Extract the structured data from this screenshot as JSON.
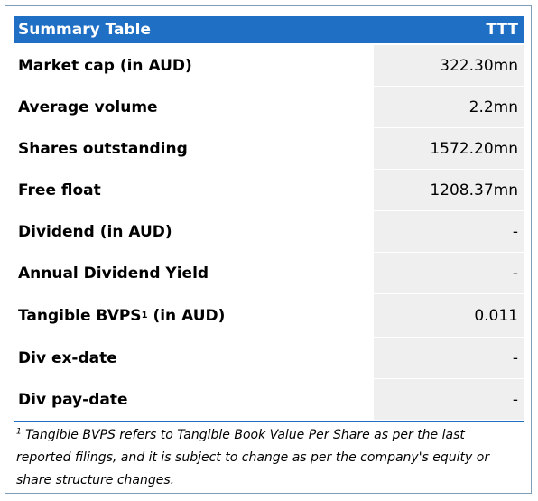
{
  "table": {
    "title": "Summary Table",
    "ticker": "TTT",
    "rows": [
      {
        "label": "Market cap (in AUD)",
        "value": "322.30mn"
      },
      {
        "label": "Average volume",
        "value": "2.2mn"
      },
      {
        "label": "Shares outstanding",
        "value": "1572.20mn"
      },
      {
        "label": "Free float",
        "value": "1208.37mn"
      },
      {
        "label": "Dividend (in AUD)",
        "value": "-"
      },
      {
        "label": "Annual Dividend Yield",
        "value": "-"
      },
      {
        "label_pre": "Tangible BVPS",
        "label_sup": "1",
        "label_post": " (in AUD)",
        "value": "0.011"
      },
      {
        "label": "Div ex-date",
        "value": "-"
      },
      {
        "label": "Div pay-date",
        "value": "-"
      }
    ]
  },
  "footnote": {
    "marker": "1",
    "text": " Tangible BVPS refers to Tangible Book Value Per Share as per the last reported filings, and it is subject to change as per the company's equity or share structure changes."
  }
}
